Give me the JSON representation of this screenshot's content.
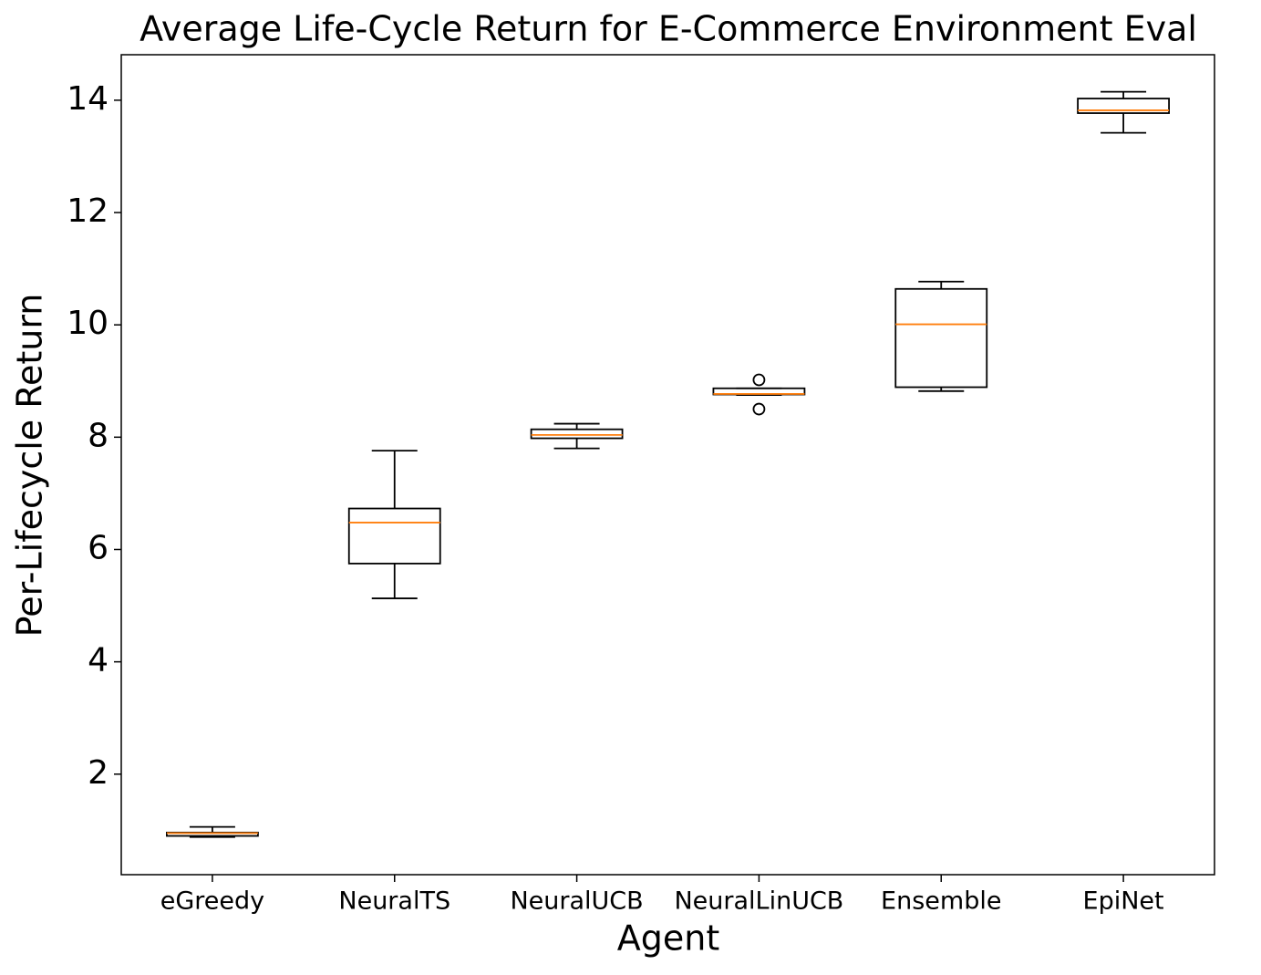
{
  "chart_data": {
    "type": "box",
    "title": "Average Life-Cycle Return for E-Commerce Environment Eval",
    "x_label": "Agent",
    "y_label": "Per-Lifecycle Return",
    "categories": [
      "eGreedy",
      "NeuralTS",
      "NeuralUCB",
      "NeuralLinUCB",
      "Ensemble",
      "EpiNet"
    ],
    "boxes": [
      {
        "whislo": 0.88,
        "q1": 0.9,
        "median": 0.95,
        "q3": 0.96,
        "whishi": 1.06
      },
      {
        "whislo": 5.13,
        "q1": 5.75,
        "median": 6.48,
        "q3": 6.73,
        "whishi": 7.76
      },
      {
        "whislo": 7.8,
        "q1": 7.98,
        "median": 8.04,
        "q3": 8.14,
        "whishi": 8.24
      },
      {
        "whislo": 8.75,
        "q1": 8.76,
        "median": 8.77,
        "q3": 8.87,
        "whishi": 8.87,
        "fliers": [
          9.02,
          8.5
        ]
      },
      {
        "whislo": 8.82,
        "q1": 8.89,
        "median": 10.01,
        "q3": 10.64,
        "whishi": 10.77
      },
      {
        "whislo": 13.42,
        "q1": 13.77,
        "median": 13.82,
        "q3": 14.03,
        "whishi": 14.15
      }
    ],
    "box_color": "#000000",
    "median_color": "#ff7f0e",
    "ylim": [
      0.21,
      14.81
    ],
    "yticks": [
      2,
      4,
      6,
      8,
      10,
      12,
      14
    ],
    "grid": false
  }
}
